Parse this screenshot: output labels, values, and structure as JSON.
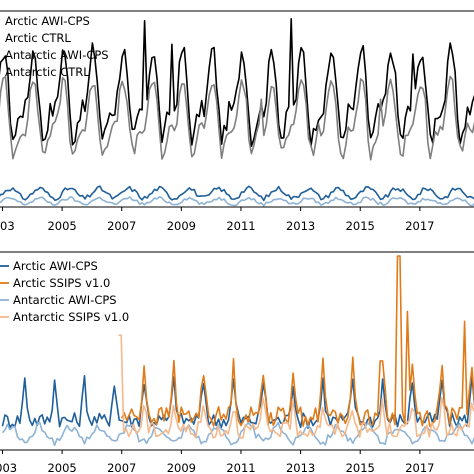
{
  "chart_data": [
    {
      "type": "line",
      "x_ticks": [
        "03",
        "2005",
        "2007",
        "2009",
        "2011",
        "2013",
        "2015",
        "2017"
      ],
      "xlim": [
        2002.85,
        2018.85
      ],
      "ylim": [
        0,
        1.0
      ],
      "grid": false,
      "legend_placement": "top-left",
      "series": [
        {
          "name": "Arctic AWI-CPS",
          "color": "#000000",
          "pattern": "ctrl",
          "base": 0.55,
          "amp": 0.18,
          "noise": 0.05,
          "spikes": [
            [
              2007.75,
              0.95
            ],
            [
              2012.7,
              0.96
            ],
            [
              2008.7,
              0.83
            ],
            [
              2016.75,
              0.78
            ]
          ]
        },
        {
          "name": "Arctic CTRL",
          "color": "#7f7f7f",
          "pattern": "ctrl",
          "base": 0.44,
          "amp": 0.15,
          "noise": 0.04,
          "spikes": [
            [
              2011.7,
              0.55
            ],
            [
              2015.7,
              0.55
            ]
          ]
        },
        {
          "name": "Antarctic AWI-CPS",
          "color": "#1f5f9a",
          "pattern": "small",
          "base": 0.07,
          "amp": 0.025,
          "noise": 0.012,
          "spikes": []
        },
        {
          "name": "Antarctic CTRL",
          "color": "#8fb3d4",
          "pattern": "small",
          "base": 0.03,
          "amp": 0.015,
          "noise": 0.008,
          "spikes": []
        }
      ]
    },
    {
      "type": "line",
      "x_ticks": [
        "2003",
        "2005",
        "2007",
        "2009",
        "2011",
        "2013",
        "2015",
        "2017"
      ],
      "xlim": [
        2002.85,
        2018.85
      ],
      "ylim": [
        0,
        1.0
      ],
      "grid": false,
      "legend_placement": "top-left",
      "series": [
        {
          "name": "Arctic AWI-CPS",
          "color": "#1f5f9a",
          "pattern": "seasonal",
          "start": 2003.0,
          "base": 0.15,
          "amp": 0.2,
          "noise": 0.04,
          "spikes": []
        },
        {
          "name": "Arctic SSIPS v1.0",
          "color": "#e07b1a",
          "pattern": "seasonal",
          "start": 2007.0,
          "base": 0.17,
          "amp": 0.25,
          "noise": 0.05,
          "spikes": [
            [
              2016.3,
              0.98
            ],
            [
              2016.6,
              0.7
            ],
            [
              2018.5,
              0.65
            ],
            [
              2015.7,
              0.45
            ]
          ]
        },
        {
          "name": "Antarctic AWI-CPS",
          "color": "#8fb3d4",
          "pattern": "small",
          "start": 2003.0,
          "base": 0.08,
          "amp": 0.04,
          "noise": 0.02,
          "spikes": []
        },
        {
          "name": "Antarctic SSIPS v1.0",
          "color": "#f5b88a",
          "pattern": "seasonal",
          "start": 2006.9,
          "base": 0.1,
          "amp": 0.13,
          "noise": 0.04,
          "spikes": [
            [
              2006.95,
              0.58
            ]
          ]
        }
      ]
    }
  ]
}
